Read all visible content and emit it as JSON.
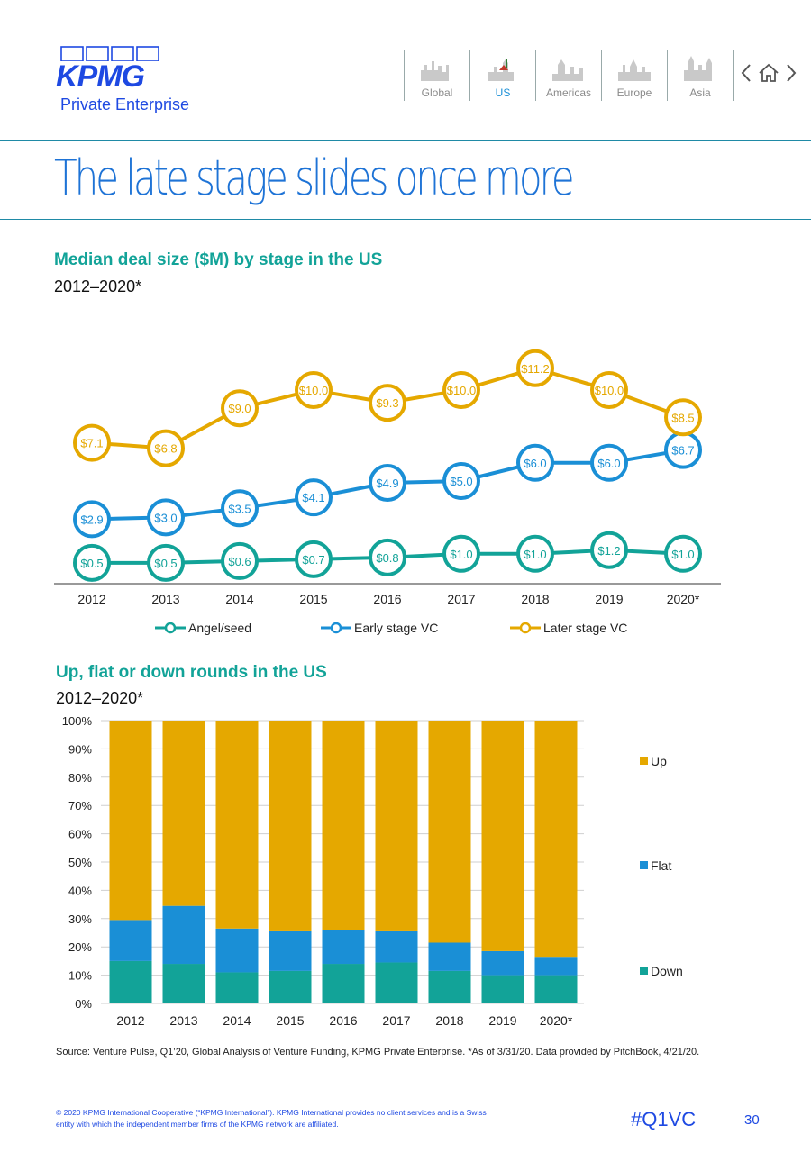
{
  "header": {
    "brand": "KPMG",
    "brand_sub": "Private Enterprise",
    "nav": [
      {
        "label": "Global",
        "icon": "global-skyline-icon",
        "active": false
      },
      {
        "label": "US",
        "icon": "us-skyline-icon",
        "active": true
      },
      {
        "label": "Americas",
        "icon": "americas-skyline-icon",
        "active": false
      },
      {
        "label": "Europe",
        "icon": "europe-skyline-icon",
        "active": false
      },
      {
        "label": "Asia",
        "icon": "asia-skyline-icon",
        "active": false
      }
    ],
    "controls": [
      "chevron-left-icon",
      "home-icon",
      "chevron-right-icon"
    ]
  },
  "page_title": "The late stage slides once more",
  "chart1": {
    "title": "Median deal size ($M) by stage in the US",
    "subtitle": "2012–2020*"
  },
  "chart2": {
    "title": "Up, flat or down rounds in the US",
    "subtitle": "2012–2020*"
  },
  "colors": {
    "angel": "#12a398",
    "early": "#1a8fd6",
    "later": "#e5a800",
    "rule": "#1f8aa6",
    "brand": "#1e49e2"
  },
  "chart_data": [
    {
      "type": "line",
      "categories": [
        "2012",
        "2013",
        "2014",
        "2015",
        "2016",
        "2017",
        "2018",
        "2019",
        "2020*"
      ],
      "series": [
        {
          "name": "Angel/seed",
          "values": [
            0.5,
            0.5,
            0.6,
            0.7,
            0.8,
            1.0,
            1.0,
            1.2,
            1.0
          ],
          "labels": [
            "$0.5",
            "$0.5",
            "$0.6",
            "$0.7",
            "$0.8",
            "$1.0",
            "$1.0",
            "$1.2",
            "$1.0"
          ]
        },
        {
          "name": "Early stage VC",
          "values": [
            2.9,
            3.0,
            3.5,
            4.1,
            4.9,
            5.0,
            6.0,
            6.0,
            6.7
          ],
          "labels": [
            "$2.9",
            "$3.0",
            "$3.5",
            "$4.1",
            "$4.9",
            "$5.0",
            "$6.0",
            "$6.0",
            "$6.7"
          ]
        },
        {
          "name": "Later stage VC",
          "values": [
            7.1,
            6.8,
            9.0,
            10.0,
            9.3,
            10.0,
            11.2,
            10.0,
            8.5
          ],
          "labels": [
            "$7.1",
            "$6.8",
            "$9.0",
            "$10.0",
            "$9.3",
            "$10.0",
            "$11.2",
            "$10.0",
            "$8.5"
          ]
        }
      ],
      "legend": "bottom"
    },
    {
      "type": "bar",
      "stacked": true,
      "categories": [
        "2012",
        "2013",
        "2014",
        "2015",
        "2016",
        "2017",
        "2018",
        "2019",
        "2020*"
      ],
      "series": [
        {
          "name": "Down",
          "values": [
            0.15,
            0.14,
            0.11,
            0.115,
            0.14,
            0.145,
            0.115,
            0.1,
            0.1
          ]
        },
        {
          "name": "Flat",
          "values": [
            0.145,
            0.205,
            0.155,
            0.14,
            0.12,
            0.11,
            0.1,
            0.085,
            0.065
          ]
        },
        {
          "name": "Up",
          "values": [
            0.705,
            0.655,
            0.735,
            0.745,
            0.74,
            0.745,
            0.785,
            0.815,
            0.835
          ]
        }
      ],
      "yticks": [
        "0%",
        "10%",
        "20%",
        "30%",
        "40%",
        "50%",
        "60%",
        "70%",
        "80%",
        "90%",
        "100%"
      ],
      "ylim": [
        0,
        1
      ],
      "grid": true,
      "legend": "right"
    }
  ],
  "source": "Source: Venture Pulse, Q1’20, Global Analysis of Venture Funding, KPMG Private Enterprise. *As of 3/31/20. Data provided by PitchBook, 4/21/20.",
  "footer": {
    "copyright": "© 2020 KPMG International Cooperative (“KPMG International”). KPMG International provides no client services and is a Swiss entity with which the independent member firms of the KPMG network are affiliated.",
    "hashtag": "#Q1VC",
    "page": "30"
  }
}
